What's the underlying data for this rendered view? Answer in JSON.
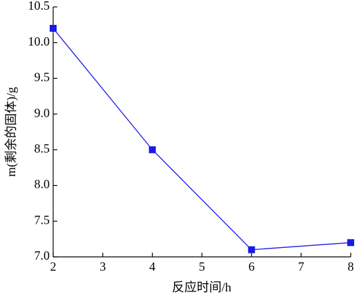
{
  "chart_data": {
    "type": "line",
    "xlabel": "反应时间/h",
    "ylabel": "m(剩余的固体)/g",
    "x": [
      2,
      4,
      6,
      8
    ],
    "series": [
      {
        "name": "m",
        "color": "#1a1ae6",
        "values": [
          10.2,
          8.5,
          7.1,
          7.2
        ]
      }
    ],
    "xlim": [
      2,
      8
    ],
    "xticks": [
      2,
      3,
      4,
      5,
      6,
      7,
      8
    ],
    "ylim": [
      7.0,
      10.5
    ],
    "yticks": [
      {
        "value": 7.0,
        "label": "7.0"
      },
      7.5,
      {
        "value": 8.0,
        "label": "8.0"
      },
      8.5,
      {
        "value": 9.0,
        "label": "9.0"
      },
      9.5,
      {
        "value": 10.0,
        "label": "10.0"
      },
      10.5
    ],
    "grid": false
  }
}
